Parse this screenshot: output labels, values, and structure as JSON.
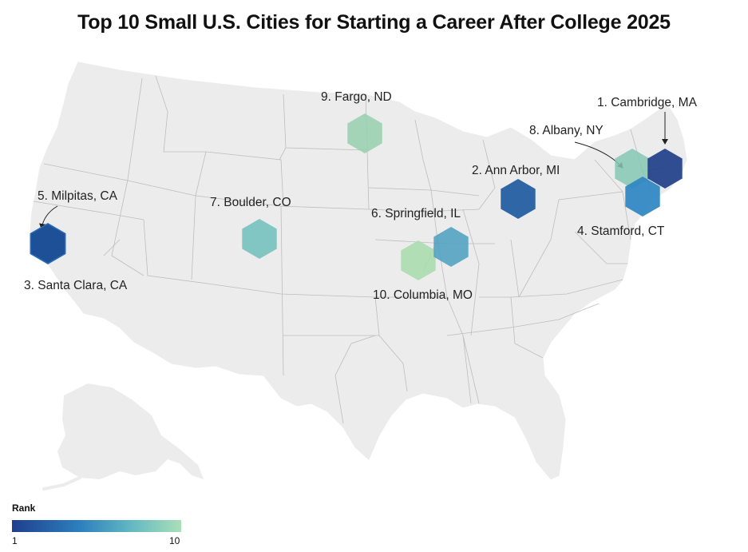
{
  "title": "Top 10 Small U.S. Cities for Starting a Career After College 2025",
  "colors": {
    "land": "#ececec",
    "border": "#bdbdbd",
    "rank1": "#1f3f8f",
    "rank10": "#a8dcb2"
  },
  "legend": {
    "title": "Rank",
    "min": "1",
    "max": "10"
  },
  "cities": [
    {
      "rank": 1,
      "label": "1. Cambridge, MA",
      "color": "#203f8a"
    },
    {
      "rank": 2,
      "label": "2. Ann Arbor, MI",
      "color": "#1e5aa0"
    },
    {
      "rank": 3,
      "label": "3. Santa Clara, CA",
      "color": "#1d4f97"
    },
    {
      "rank": 4,
      "label": "4. Stamford, CT",
      "color": "#2e86c3"
    },
    {
      "rank": 5,
      "label": "5. Milpitas, CA",
      "color": "#1d4f97"
    },
    {
      "rank": 6,
      "label": "6. Springfield, IL",
      "color": "#4a9fc0"
    },
    {
      "rank": 7,
      "label": "7. Boulder, CO",
      "color": "#6fbfbb"
    },
    {
      "rank": 8,
      "label": "8. Albany, NY",
      "color": "#86c8b4"
    },
    {
      "rank": 9,
      "label": "9. Fargo, ND",
      "color": "#97d0ae"
    },
    {
      "rank": 10,
      "label": "10. Columbia, MO",
      "color": "#a8dcac"
    }
  ]
}
